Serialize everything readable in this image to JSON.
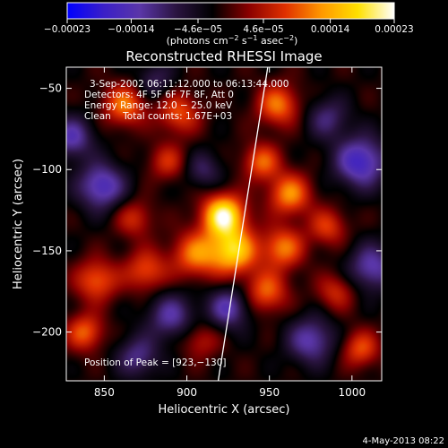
{
  "chart_data": {
    "type": "heatmap",
    "title": "Reconstructed RHESSI Image",
    "xlabel": "Heliocentric X (arcsec)",
    "ylabel": "Heliocentric Y (arcsec)",
    "xlim": [
      827,
      1018
    ],
    "ylim": [
      -230,
      -37
    ],
    "x_ticks": [
      850,
      900,
      950,
      1000
    ],
    "x_tick_labels": [
      "850",
      "900",
      "950",
      "1000"
    ],
    "y_ticks": [
      -50,
      -100,
      -150,
      -200
    ],
    "y_tick_labels": [
      "−50",
      "−100",
      "−150",
      "−200"
    ],
    "colorbar": {
      "range": [
        -0.00023,
        0.00023
      ],
      "ticks": [
        -0.00023,
        -0.00014,
        -4.6e-05,
        4.6e-05,
        0.00014,
        0.00023
      ],
      "tick_labels": [
        "−0.00023",
        "−0.00014",
        "−4.6e−05",
        "4.6e−05",
        "0.00014",
        "0.00023"
      ],
      "units_prefix": "(photons cm",
      "units_sup1": "−2",
      "units_mid": " s",
      "units_sup2": "−1",
      "units_mid2": " asec",
      "units_sup3": "−2",
      "units_suffix": ")",
      "colormap": [
        "#0000ff",
        "#3a1fc8",
        "#5a36a8",
        "#2a1440",
        "#000000",
        "#8a0000",
        "#e03000",
        "#ff9800",
        "#ffe000",
        "#ffffff"
      ]
    },
    "info_lines": [
      "3-Sep-2002 06:11:12.000 to 06:13:44.000",
      "Detectors: 4F 5F 6F 7F 8F, Att 0",
      "Energy Range: 12.0 − 25.0 keV",
      "Clean    Total counts: 1.67E+03"
    ],
    "peak_label": "Position of Peak = [923,−130]",
    "peak": [
      923,
      -130
    ],
    "limb_line": [
      [
        919,
        -230
      ],
      [
        949,
        -37
      ]
    ],
    "sources": [
      {
        "x": 922,
        "y": -128,
        "amp": 1.0,
        "s": 9
      },
      {
        "x": 928,
        "y": -150,
        "amp": 0.8,
        "s": 10
      },
      {
        "x": 905,
        "y": -152,
        "amp": 0.55,
        "s": 10
      },
      {
        "x": 862,
        "y": -60,
        "amp": 0.55,
        "s": 9
      },
      {
        "x": 895,
        "y": -65,
        "amp": 0.45,
        "s": 9
      },
      {
        "x": 888,
        "y": -95,
        "amp": 0.35,
        "s": 8
      },
      {
        "x": 955,
        "y": -60,
        "amp": 0.55,
        "s": 9
      },
      {
        "x": 945,
        "y": -95,
        "amp": 0.5,
        "s": 8
      },
      {
        "x": 962,
        "y": -115,
        "amp": 0.6,
        "s": 9
      },
      {
        "x": 958,
        "y": -148,
        "amp": 0.55,
        "s": 9
      },
      {
        "x": 948,
        "y": -175,
        "amp": 0.5,
        "s": 9
      },
      {
        "x": 985,
        "y": -135,
        "amp": 0.4,
        "s": 8
      },
      {
        "x": 845,
        "y": -168,
        "amp": 0.5,
        "s": 9
      },
      {
        "x": 838,
        "y": -200,
        "amp": 0.5,
        "s": 8
      },
      {
        "x": 875,
        "y": -162,
        "amp": 0.45,
        "s": 9
      },
      {
        "x": 868,
        "y": -130,
        "amp": 0.35,
        "s": 8
      },
      {
        "x": 990,
        "y": -175,
        "amp": 0.35,
        "s": 8
      },
      {
        "x": 1005,
        "y": -210,
        "amp": 0.45,
        "s": 8
      },
      {
        "x": 908,
        "y": -205,
        "amp": 0.3,
        "s": 8
      },
      {
        "x": 848,
        "y": -110,
        "amp": -0.6,
        "s": 10
      },
      {
        "x": 830,
        "y": -80,
        "amp": -0.5,
        "s": 9
      },
      {
        "x": 1005,
        "y": -95,
        "amp": -0.65,
        "s": 11
      },
      {
        "x": 985,
        "y": -68,
        "amp": -0.35,
        "s": 9
      },
      {
        "x": 1012,
        "y": -160,
        "amp": -0.5,
        "s": 10
      },
      {
        "x": 890,
        "y": -190,
        "amp": -0.45,
        "s": 10
      },
      {
        "x": 925,
        "y": -185,
        "amp": -0.5,
        "s": 9
      },
      {
        "x": 870,
        "y": -215,
        "amp": -0.4,
        "s": 9
      },
      {
        "x": 975,
        "y": -205,
        "amp": -0.5,
        "s": 10
      },
      {
        "x": 910,
        "y": -100,
        "amp": -0.3,
        "s": 8
      },
      {
        "x": 880,
        "y": -45,
        "amp": -0.3,
        "s": 8
      }
    ]
  },
  "footer": {
    "date": "4-May-2013 08:22"
  }
}
